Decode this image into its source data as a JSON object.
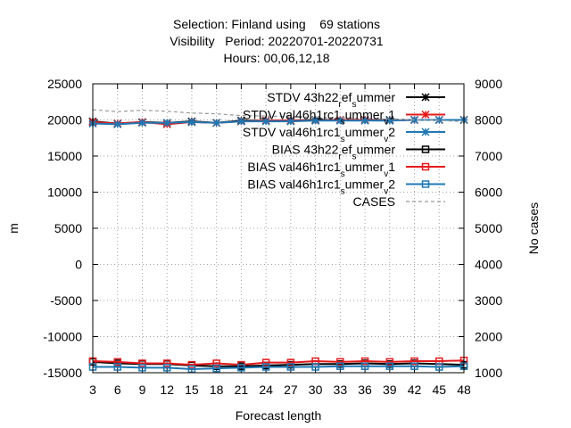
{
  "chart_data": {
    "type": "line",
    "title_lines": [
      "Selection: Finland using    69 stations",
      "Visibility   Period: 20220701-20220731",
      "Hours: 00,06,12,18"
    ],
    "xlabel": "Forecast length",
    "ylabel": "m",
    "y2label": "No cases",
    "x": [
      3,
      6,
      9,
      12,
      15,
      18,
      21,
      24,
      27,
      30,
      33,
      36,
      39,
      42,
      45,
      48
    ],
    "xlim": [
      3,
      48
    ],
    "ylim": [
      -15000,
      25000
    ],
    "y2lim": [
      1000,
      9000
    ],
    "yticks": [
      -15000,
      -10000,
      -5000,
      0,
      5000,
      10000,
      15000,
      20000,
      25000
    ],
    "y2ticks": [
      1000,
      2000,
      3000,
      4000,
      5000,
      6000,
      7000,
      8000,
      9000
    ],
    "grid": true,
    "legend_position": "top-right",
    "series": [
      {
        "name_parts": [
          [
            "STDV 43h22",
            "n"
          ],
          [
            "r",
            "sub"
          ],
          [
            "ef",
            "n"
          ],
          [
            "s",
            "sub"
          ],
          [
            "ummer",
            "n"
          ]
        ],
        "color": "#000000",
        "marker": "star",
        "axis": "y",
        "values": [
          19800,
          19500,
          19700,
          19600,
          19800,
          19600,
          19900,
          19900,
          19900,
          20000,
          20000,
          20000,
          20000,
          20000,
          20000,
          20000
        ]
      },
      {
        "name_parts": [
          [
            "STDV val46h1rc1",
            "n"
          ],
          [
            "s",
            "sub"
          ],
          [
            "ummer",
            "n"
          ],
          [
            "v",
            "sub"
          ],
          [
            "1",
            "n"
          ]
        ],
        "color": "#e41a1c",
        "marker": "star",
        "axis": "y",
        "values": [
          19700,
          19500,
          19700,
          19400,
          19700,
          19600,
          19800,
          19900,
          19900,
          19900,
          20000,
          20000,
          19900,
          20000,
          20000,
          20000
        ]
      },
      {
        "name_parts": [
          [
            "STDV val46h1rc1",
            "n"
          ],
          [
            "s",
            "sub"
          ],
          [
            "ummer",
            "n"
          ],
          [
            "v",
            "sub"
          ],
          [
            "2",
            "n"
          ]
        ],
        "color": "#1f78b4",
        "marker": "star",
        "axis": "y",
        "values": [
          19500,
          19400,
          19600,
          19600,
          19700,
          19600,
          19800,
          19800,
          19800,
          19900,
          19900,
          19900,
          19900,
          20000,
          20000,
          20000
        ]
      },
      {
        "name_parts": [
          [
            "BIAS 43h22",
            "n"
          ],
          [
            "r",
            "sub"
          ],
          [
            "ef",
            "n"
          ],
          [
            "s",
            "sub"
          ],
          [
            "ummer",
            "n"
          ]
        ],
        "color": "#000000",
        "marker": "square",
        "axis": "y",
        "values": [
          -13500,
          -13700,
          -13800,
          -13800,
          -14000,
          -14100,
          -14100,
          -14000,
          -13900,
          -13800,
          -13800,
          -13700,
          -13800,
          -13700,
          -13800,
          -13900
        ]
      },
      {
        "name_parts": [
          [
            "BIAS val46h1rc1",
            "n"
          ],
          [
            "s",
            "sub"
          ],
          [
            "ummer",
            "n"
          ],
          [
            "v",
            "sub"
          ],
          [
            "1",
            "n"
          ]
        ],
        "color": "#e41a1c",
        "marker": "square",
        "axis": "y",
        "values": [
          -13400,
          -13500,
          -13700,
          -13700,
          -13900,
          -13700,
          -13900,
          -13600,
          -13600,
          -13400,
          -13500,
          -13400,
          -13500,
          -13400,
          -13400,
          -13300
        ]
      },
      {
        "name_parts": [
          [
            "BIAS val46h1rc1",
            "n"
          ],
          [
            "s",
            "sub"
          ],
          [
            "ummer",
            "n"
          ],
          [
            "v",
            "sub"
          ],
          [
            "2",
            "n"
          ]
        ],
        "color": "#1f78b4",
        "marker": "square",
        "axis": "y",
        "values": [
          -14200,
          -14200,
          -14300,
          -14300,
          -14500,
          -14400,
          -14300,
          -14200,
          -14200,
          -14200,
          -14100,
          -14100,
          -14100,
          -14100,
          -14200,
          -14100
        ]
      },
      {
        "name_parts": [
          [
            "CASES",
            "n"
          ]
        ],
        "color": "#999999",
        "marker": "none",
        "dashed": true,
        "axis": "y2",
        "values": [
          8280,
          8230,
          8270,
          8240,
          8190,
          8170,
          8120,
          8110,
          8090,
          8070,
          8060,
          8040,
          8020,
          8000,
          7990,
          7950
        ]
      }
    ]
  }
}
